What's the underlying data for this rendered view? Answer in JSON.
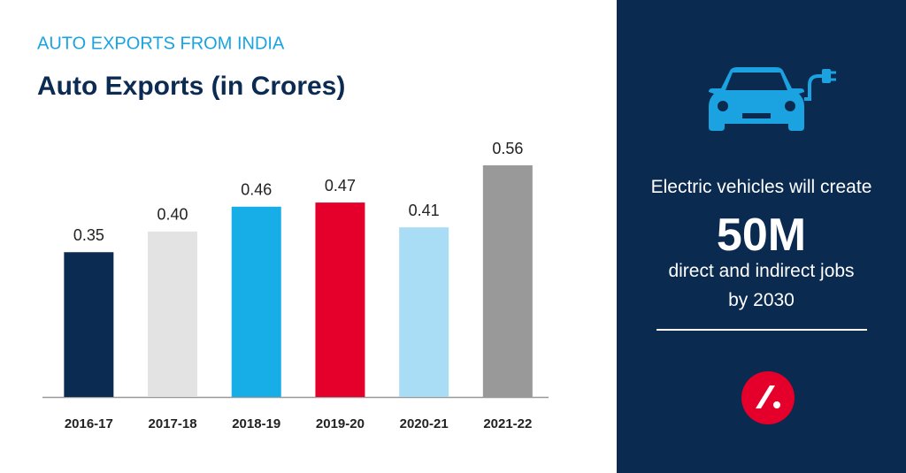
{
  "chart_data": {
    "type": "bar",
    "subtitle": "AUTO EXPORTS FROM INDIA",
    "title": "Auto Exports (in Crores)",
    "categories": [
      "2016-17",
      "2017-18",
      "2018-19",
      "2019-20",
      "2020-21",
      "2021-22"
    ],
    "values": [
      0.35,
      0.4,
      0.46,
      0.47,
      0.41,
      0.56
    ],
    "value_labels": [
      "0.35",
      "0.40",
      "0.46",
      "0.47",
      "0.41",
      "0.56"
    ],
    "colors": [
      "#0b2b52",
      "#e3e3e3",
      "#17ade6",
      "#e4002b",
      "#a9dcf5",
      "#999999"
    ]
  },
  "panel": {
    "line1": "Electric vehicles will create",
    "headline": "50M",
    "line2": "direct and indirect jobs",
    "line3": "by 2030"
  }
}
